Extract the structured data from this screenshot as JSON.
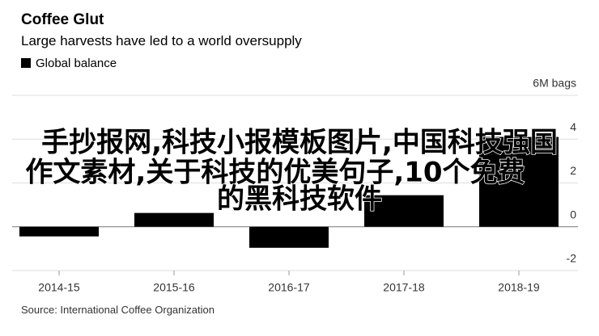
{
  "chart_data": {
    "type": "bar",
    "title": "Coffee Glut",
    "subtitle": "Large harvests have led to a world oversupply",
    "series": [
      {
        "name": "Global balance",
        "color": "#000000",
        "values": [
          -0.44,
          0.63,
          -0.96,
          1.44,
          4.1
        ]
      }
    ],
    "categories": [
      "2014-15",
      "2015-16",
      "2016-17",
      "2017-18",
      "2018-19"
    ],
    "ylim": [
      -2,
      6
    ],
    "yticks": [
      -2,
      0,
      2,
      4,
      {
        "value": 6,
        "label": "6M bags"
      }
    ],
    "grid": true,
    "source": "Source: International Coffee Organization",
    "watermark": [
      "手抄报网,科技小报模板图片,中国科技强国",
      "作文素材,关于科技的优美句子,10个免费",
      "的黑科技软件"
    ]
  }
}
